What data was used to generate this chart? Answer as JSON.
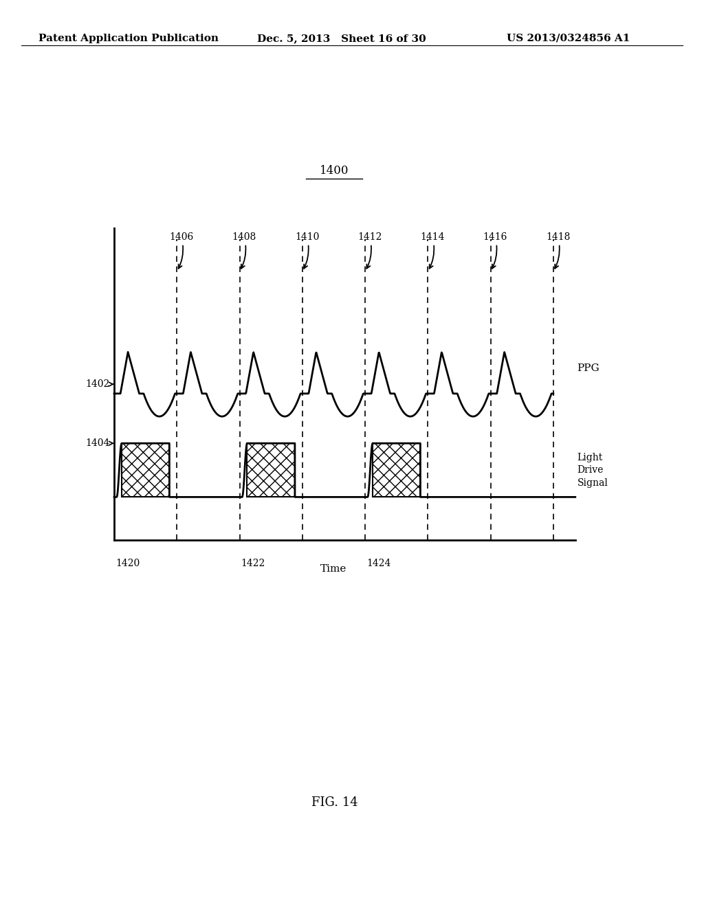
{
  "title": "1400",
  "header_left": "Patent Application Publication",
  "header_mid": "Dec. 5, 2013   Sheet 16 of 30",
  "header_right": "US 2013/0324856 A1",
  "footer_fig": "FIG. 14",
  "xlabel": "Time",
  "label_ppg": "PPG",
  "label_lds": "Light\nDrive\nSignal",
  "label_1402": "1402",
  "label_1404": "1404",
  "label_1420": "1420",
  "label_1422": "1422",
  "label_1424": "1424",
  "dashed_labels": [
    "1406",
    "1408",
    "1410",
    "1412",
    "1414",
    "1416",
    "1418"
  ],
  "dashed_positions": [
    1.0,
    2.0,
    3.0,
    4.0,
    5.0,
    6.0,
    7.0
  ],
  "period": 1.0,
  "n_periods": 7,
  "pulse_on_periods": [
    0,
    2,
    4
  ],
  "ppg_amplitude": 1.0,
  "ppg_baseline": 3.5,
  "ppg_trough": 2.3,
  "drive_high": 1.8,
  "drive_low": 0.8,
  "bg_color": "#ffffff",
  "line_color": "#000000",
  "hatch_fill": "xx",
  "axis_lw": 2.0,
  "signal_lw": 2.0,
  "dashed_lw": 1.2,
  "font_size_header": 11,
  "font_size_label": 11,
  "font_size_title": 12,
  "font_size_annot": 10
}
